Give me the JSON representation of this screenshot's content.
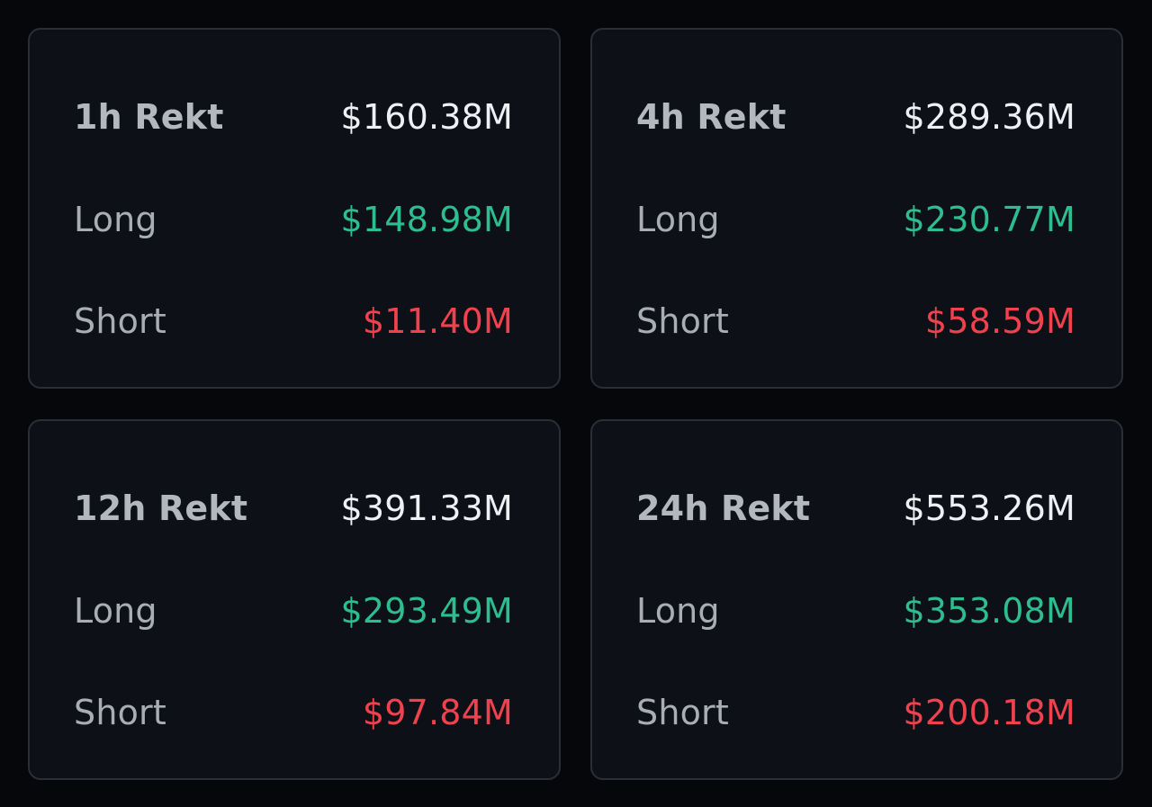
{
  "colors": {
    "background": "#05070b",
    "card": "#0d1016",
    "border": "#2a2e37",
    "label": "#a9adb6",
    "total": "#eef0f3",
    "long": "#2ebd8f",
    "short": "#f0424e"
  },
  "cards": [
    {
      "title": "1h Rekt",
      "total": "$160.38M",
      "long_label": "Long",
      "long": "$148.98M",
      "short_label": "Short",
      "short": "$11.40M"
    },
    {
      "title": "4h Rekt",
      "total": "$289.36M",
      "long_label": "Long",
      "long": "$230.77M",
      "short_label": "Short",
      "short": "$58.59M"
    },
    {
      "title": "12h Rekt",
      "total": "$391.33M",
      "long_label": "Long",
      "long": "$293.49M",
      "short_label": "Short",
      "short": "$97.84M"
    },
    {
      "title": "24h Rekt",
      "total": "$553.26M",
      "long_label": "Long",
      "long": "$353.08M",
      "short_label": "Short",
      "short": "$200.18M"
    }
  ]
}
